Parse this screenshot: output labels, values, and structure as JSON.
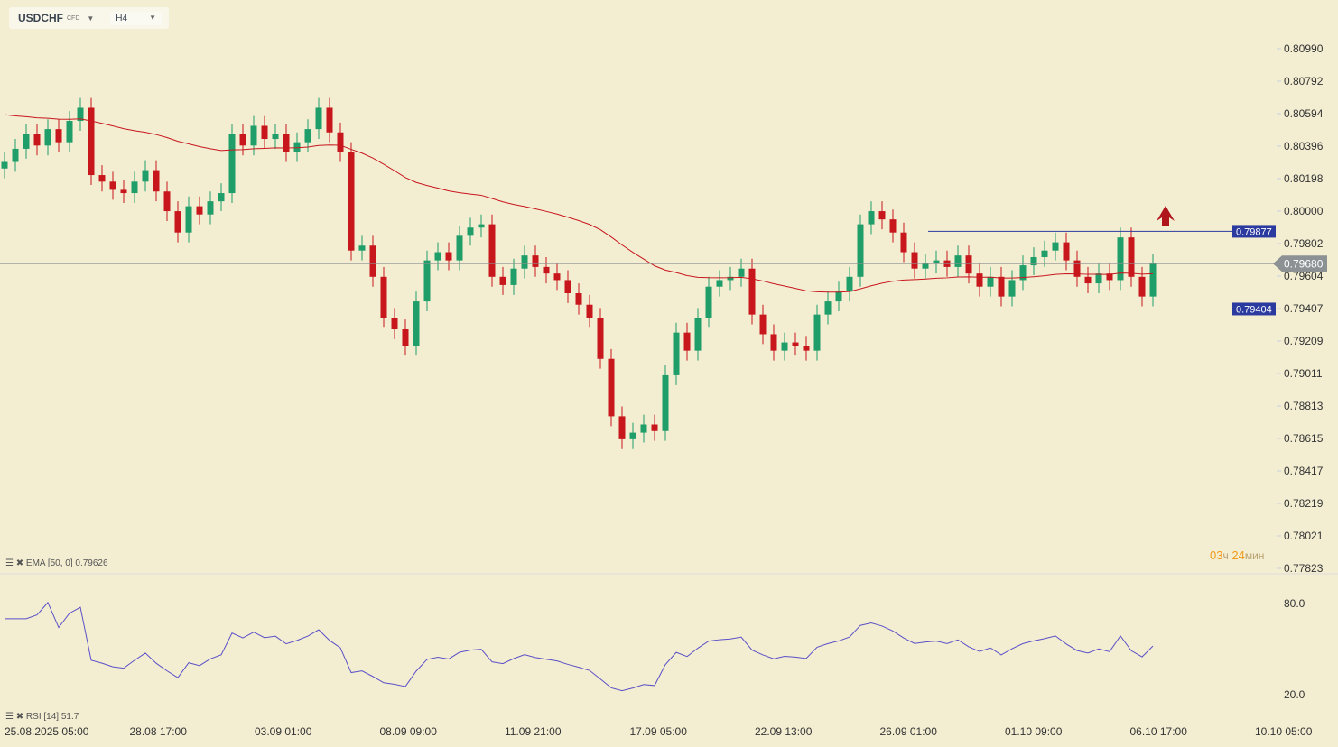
{
  "header": {
    "symbol": "USDCHF",
    "symbol_type": "CFD",
    "timeframe": "H4"
  },
  "indicators": {
    "ema_label": "EMA [50, 0] 0.79626",
    "rsi_label": "RSI [14] 51.7"
  },
  "timer": {
    "hours": "03",
    "hours_unit": "ч",
    "minutes": "24",
    "minutes_unit": "мин"
  },
  "colors": {
    "bg": "#f3eed2",
    "up": "#1f9e6a",
    "down": "#c8161d",
    "ema": "#c8161d",
    "rsi": "#5a4fc8",
    "level": "#2b3a9e",
    "price_tag": "#8c9194"
  },
  "chart_data": {
    "type": "candlestick",
    "y_ticks": [
      "0.80990",
      "0.80792",
      "0.80594",
      "0.80396",
      "0.80198",
      "0.80000",
      "0.79802",
      "0.79604",
      "0.79407",
      "0.79209",
      "0.79011",
      "0.78813",
      "0.78615",
      "0.78417",
      "0.78219",
      "0.78021",
      "0.77823"
    ],
    "ylim": [
      0.77823,
      0.8099
    ],
    "x_labels": [
      "25.08.2025  05:00",
      "28.08  17:00",
      "03.09  01:00",
      "08.09  09:00",
      "11.09  21:00",
      "17.09  05:00",
      "22.09  13:00",
      "26.09  01:00",
      "01.10  09:00",
      "06.10  17:00",
      "10.10  05:00"
    ],
    "first_open": 0.8026,
    "closes": [
      0.803,
      0.8038,
      0.8047,
      0.804,
      0.805,
      0.8042,
      0.8055,
      0.8063,
      0.8022,
      0.8018,
      0.8013,
      0.8011,
      0.8018,
      0.8025,
      0.8012,
      0.8,
      0.7987,
      0.8003,
      0.7998,
      0.8006,
      0.8011,
      0.8047,
      0.804,
      0.8052,
      0.8044,
      0.8047,
      0.8036,
      0.8042,
      0.805,
      0.8063,
      0.8048,
      0.8036,
      0.7976,
      0.7979,
      0.796,
      0.7935,
      0.7928,
      0.7918,
      0.7945,
      0.797,
      0.7975,
      0.797,
      0.7985,
      0.799,
      0.7992,
      0.796,
      0.7955,
      0.7965,
      0.7973,
      0.7966,
      0.7962,
      0.7958,
      0.795,
      0.7943,
      0.7935,
      0.791,
      0.7875,
      0.7861,
      0.7865,
      0.787,
      0.7866,
      0.79,
      0.7926,
      0.7915,
      0.7935,
      0.7954,
      0.7958,
      0.796,
      0.7965,
      0.7937,
      0.7925,
      0.7915,
      0.792,
      0.7918,
      0.7915,
      0.7937,
      0.7945,
      0.7951,
      0.796,
      0.7992,
      0.8,
      0.7995,
      0.7987,
      0.7975,
      0.7965,
      0.7968,
      0.797,
      0.7966,
      0.7973,
      0.7962,
      0.7954,
      0.796,
      0.7948,
      0.7958,
      0.7967,
      0.7972,
      0.7976,
      0.7981,
      0.797,
      0.796,
      0.7956,
      0.7962,
      0.7958,
      0.7984,
      0.796,
      0.7948,
      0.7968
    ],
    "current_price": "0.79680",
    "current_value": 0.7968,
    "levels": [
      {
        "label": "0.79877",
        "value": 0.79877
      },
      {
        "label": "0.79404",
        "value": 0.79404
      }
    ],
    "rsi_ticks": [
      "80.0",
      "20.0"
    ],
    "signal": "up-arrow"
  }
}
